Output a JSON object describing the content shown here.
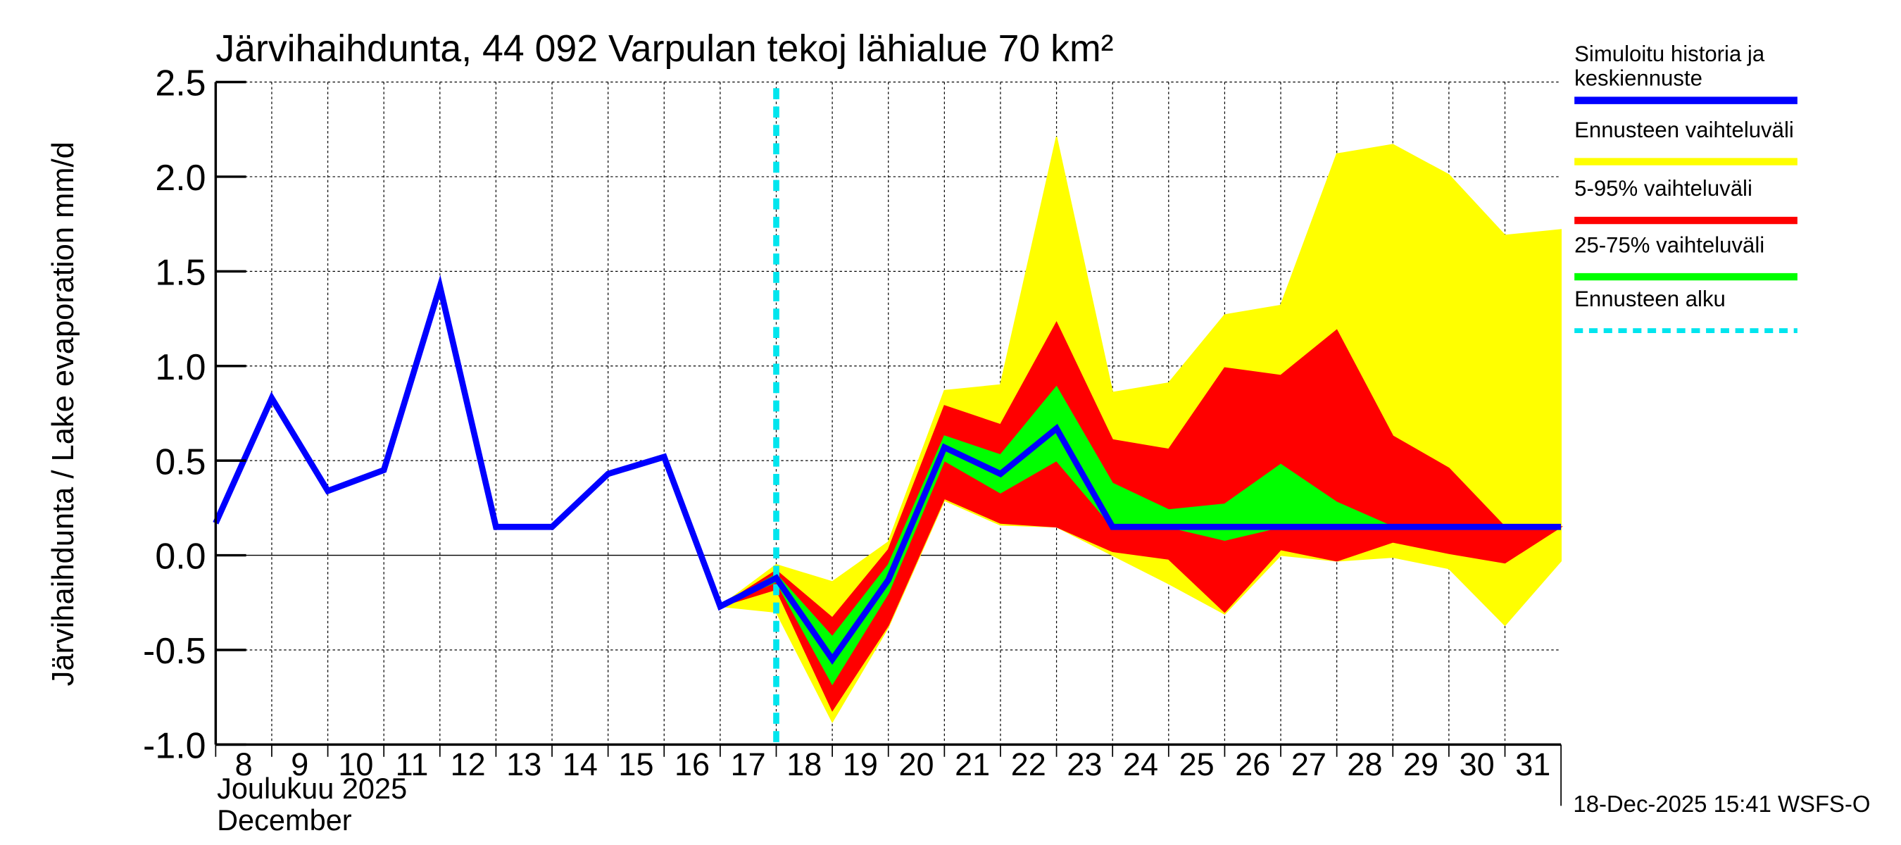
{
  "chart_data": {
    "type": "area",
    "title": "Järvihaihdunta, 44 092 Varpulan tekoj lähialue 70 km²",
    "ylabel": "Järvihaihdunta / Lake evaporation   mm/d",
    "xlabel_fi": "Joulukuu  2025",
    "xlabel_en": "December",
    "ylim": [
      -1.0,
      2.5
    ],
    "xlim": [
      8,
      32
    ],
    "yticks": [
      "2.5",
      "2.0",
      "1.5",
      "1.0",
      "0.5",
      "0.0",
      "-0.5",
      "-1.0"
    ],
    "ytick_values": [
      2.5,
      2.0,
      1.5,
      1.0,
      0.5,
      0.0,
      -0.5,
      -1.0
    ],
    "xticks": [
      "8",
      "9",
      "10",
      "11",
      "12",
      "13",
      "14",
      "15",
      "16",
      "17",
      "18",
      "19",
      "20",
      "21",
      "22",
      "23",
      "24",
      "25",
      "26",
      "27",
      "28",
      "29",
      "30",
      "31"
    ],
    "forecast_start": 18,
    "grid": true,
    "legend_placement": "right",
    "legend": [
      {
        "label_line1": "Simuloitu historia ja",
        "label_line2": "keskiennuste",
        "color": "#0000ff"
      },
      {
        "label_line1": "Ennusteen vaihteluväli",
        "color": "#ffff00"
      },
      {
        "label_line1": "5-95% vaihteluväli",
        "color": "#ff0000"
      },
      {
        "label_line1": "25-75% vaihteluväli",
        "color": "#00ff00"
      },
      {
        "label_line1": "Ennusteen alku",
        "color": "#00e5ee"
      }
    ],
    "series": {
      "median": {
        "x": [
          8,
          9,
          10,
          11,
          12,
          13,
          14,
          15,
          16,
          17,
          18,
          19,
          20,
          21,
          22,
          23,
          24,
          25,
          26,
          27,
          28,
          29,
          30,
          31,
          32
        ],
        "y": [
          0.17,
          0.83,
          0.34,
          0.45,
          1.42,
          0.15,
          0.15,
          0.43,
          0.52,
          -0.27,
          -0.12,
          -0.55,
          -0.13,
          0.57,
          0.43,
          0.67,
          0.15,
          0.15,
          0.15,
          0.15,
          0.15,
          0.15,
          0.15,
          0.15,
          0.15
        ]
      },
      "range": {
        "x": [
          17,
          18,
          19,
          20,
          21,
          22,
          23,
          24,
          25,
          26,
          27,
          28,
          29,
          30,
          31,
          32
        ],
        "upper": [
          -0.27,
          -0.05,
          -0.14,
          0.07,
          0.87,
          0.9,
          2.21,
          0.86,
          0.91,
          1.27,
          1.32,
          2.12,
          2.17,
          2.01,
          1.69,
          1.72
        ],
        "lower": [
          -0.27,
          -0.3,
          -0.88,
          -0.38,
          0.29,
          0.16,
          0.15,
          0.0,
          -0.15,
          -0.31,
          0.0,
          -0.03,
          -0.01,
          -0.07,
          -0.37,
          -0.03
        ]
      },
      "p5_95": {
        "x": [
          17,
          18,
          19,
          20,
          21,
          22,
          23,
          24,
          25,
          26,
          27,
          28,
          29,
          30,
          31,
          32
        ],
        "upper": [
          -0.27,
          -0.08,
          -0.33,
          0.03,
          0.79,
          0.69,
          1.23,
          0.61,
          0.56,
          0.99,
          0.95,
          1.19,
          0.63,
          0.46,
          0.15,
          0.15
        ],
        "lower": [
          -0.27,
          -0.18,
          -0.82,
          -0.37,
          0.3,
          0.17,
          0.15,
          0.02,
          -0.02,
          -0.3,
          0.03,
          -0.03,
          0.07,
          0.01,
          -0.04,
          0.15
        ]
      },
      "p25_75": {
        "x": [
          17,
          18,
          19,
          20,
          21,
          22,
          23,
          24,
          25,
          26,
          27,
          28,
          29,
          30,
          31,
          32
        ],
        "upper": [
          -0.27,
          -0.1,
          -0.43,
          -0.05,
          0.63,
          0.53,
          0.89,
          0.38,
          0.24,
          0.27,
          0.48,
          0.28,
          0.15,
          0.15,
          0.15,
          0.15
        ],
        "lower": [
          -0.27,
          -0.14,
          -0.68,
          -0.2,
          0.5,
          0.33,
          0.5,
          0.15,
          0.15,
          0.08,
          0.15,
          0.15,
          0.15,
          0.15,
          0.15,
          0.15
        ]
      }
    }
  },
  "footer": "18-Dec-2025 15:41 WSFS-O"
}
